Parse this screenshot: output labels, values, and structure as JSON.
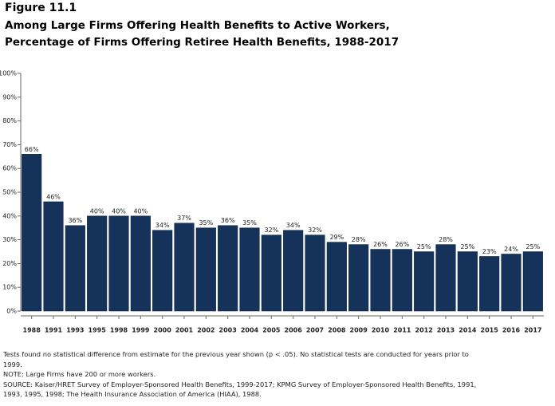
{
  "chart_data": {
    "type": "bar",
    "title": "Figure 11.1",
    "subtitle": "Among Large Firms Offering Health Benefits to Active Workers, Percentage of Firms Offering Retiree Health Benefits, 1988-2017",
    "categories": [
      "1988",
      "1991",
      "1993",
      "1995",
      "1998",
      "1999",
      "2000",
      "2001",
      "2002",
      "2003",
      "2004",
      "2005",
      "2006",
      "2007",
      "2008",
      "2009",
      "2010",
      "2011",
      "2012",
      "2013",
      "2014",
      "2015",
      "2016",
      "2017"
    ],
    "values": [
      66,
      46,
      36,
      40,
      40,
      40,
      34,
      37,
      35,
      36,
      35,
      32,
      34,
      32,
      29,
      28,
      26,
      26,
      25,
      28,
      25,
      23,
      24,
      25
    ],
    "value_labels": [
      "66%",
      "46%",
      "36%",
      "40%",
      "40%",
      "40%",
      "34%",
      "37%",
      "35%",
      "36%",
      "35%",
      "32%",
      "34%",
      "32%",
      "29%",
      "28%",
      "26%",
      "26%",
      "25%",
      "28%",
      "25%",
      "23%",
      "24%",
      "25%"
    ],
    "color": "#15325a",
    "ylim": [
      0,
      100
    ],
    "yticks": [
      {
        "value": 0,
        "label": "0%"
      },
      {
        "value": 10,
        "label": "10%"
      },
      {
        "value": 20,
        "label": "20%"
      },
      {
        "value": 30,
        "label": "30%"
      },
      {
        "value": 40,
        "label": "40%"
      },
      {
        "value": 50,
        "label": "50%"
      },
      {
        "value": 60,
        "label": "60%"
      },
      {
        "value": 70,
        "label": "70%"
      },
      {
        "value": 80,
        "label": "80%"
      },
      {
        "value": 90,
        "label": "90%"
      },
      {
        "value": 100,
        "label": "100%"
      }
    ],
    "notes": [
      "Tests found no statistical difference from estimate for the previous year shown (p < .05). No statistical tests are conducted for years prior to 1999.",
      "NOTE: Large Firms have 200 or more workers.",
      "SOURCE: Kaiser/HRET Survey of Employer-Sponsored Health Benefits, 1999-2017; KPMG Survey of Employer-Sponsored Health Benefits, 1991, 1993, 1995, 1998; The Health Insurance Association of America (HIAA), 1988."
    ]
  }
}
